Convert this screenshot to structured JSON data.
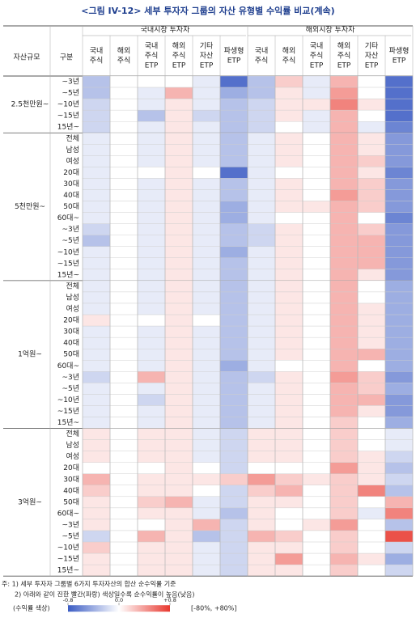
{
  "chart_data": {
    "type": "heatmap",
    "title": "<그림 IV-12> 세부 투자자 그룹의 자산 유형별 수익률 비교(계속)",
    "row_header": "자산규모",
    "sub_header": "구분",
    "column_groups": [
      {
        "name": "국내시장 투자자",
        "columns": [
          [
            "국내",
            "주식"
          ],
          [
            "해외",
            "주식"
          ],
          [
            "국내",
            "주식",
            "ETP"
          ],
          [
            "해외",
            "주식",
            "ETP"
          ],
          [
            "기타",
            "자산",
            "ETP"
          ],
          [
            "파생형",
            "ETP"
          ]
        ]
      },
      {
        "name": "해외시장 투자자",
        "columns": [
          [
            "국내",
            "주식"
          ],
          [
            "해외",
            "주식"
          ],
          [
            "국내",
            "주식",
            "ETP"
          ],
          [
            "해외",
            "주식",
            "ETP"
          ],
          [
            "기타",
            "자산",
            "ETP"
          ],
          [
            "파생형",
            "ETP"
          ]
        ]
      }
    ],
    "row_groups": [
      {
        "name": "2.5천만원~",
        "rows": [
          "~3년",
          "~5년",
          "~10년",
          "~15년",
          "15년~"
        ]
      },
      {
        "name": "5천만원~",
        "rows": [
          "전체",
          "남성",
          "여성",
          "20대",
          "30대",
          "40대",
          "50대",
          "60대~",
          "~3년",
          "~5년",
          "~10년",
          "~15년",
          "15년~"
        ]
      },
      {
        "name": "1억원~",
        "rows": [
          "전체",
          "남성",
          "여성",
          "20대",
          "30대",
          "40대",
          "50대",
          "60대~",
          "~3년",
          "~5년",
          "~10년",
          "~15년",
          "15년~"
        ]
      },
      {
        "name": "3억원~",
        "rows": [
          "전체",
          "남성",
          "여성",
          "20대",
          "30대",
          "40대",
          "50대",
          "60대~",
          "~3년",
          "~5년",
          "~10년",
          "~15년",
          "15년~"
        ]
      }
    ],
    "values": [
      [
        [
          -0.3,
          0,
          0,
          0,
          -0.1,
          -0.7,
          -0.3,
          0.2,
          -0.1,
          0.3,
          0,
          -0.7
        ],
        [
          -0.3,
          0,
          -0.1,
          0.3,
          -0.1,
          -0.4,
          -0.3,
          0.1,
          -0.1,
          0.4,
          0,
          -0.7
        ],
        [
          -0.2,
          0,
          -0.1,
          0.1,
          -0.1,
          -0.3,
          -0.2,
          0.1,
          0.1,
          0.5,
          0.1,
          -0.7
        ],
        [
          -0.2,
          0,
          -0.3,
          0.1,
          -0.2,
          -0.3,
          -0.2,
          0.1,
          -0.1,
          0.3,
          0,
          -0.7
        ],
        [
          -0.2,
          0,
          -0.1,
          0.1,
          -0.1,
          -0.3,
          -0.2,
          0,
          -0.1,
          0.3,
          -0.1,
          -0.6
        ]
      ],
      [
        [
          -0.1,
          0,
          -0.1,
          0.1,
          -0.1,
          -0.3,
          -0.1,
          0.1,
          0,
          0.3,
          0.1,
          -0.5
        ],
        [
          -0.1,
          0,
          -0.1,
          0.1,
          -0.1,
          -0.3,
          -0.1,
          0.1,
          0,
          0.3,
          0.1,
          -0.5
        ],
        [
          -0.1,
          0,
          -0.1,
          0.1,
          -0.1,
          -0.3,
          -0.1,
          0.1,
          0,
          0.3,
          0.2,
          -0.5
        ],
        [
          -0.1,
          0,
          0,
          0.1,
          0,
          -0.7,
          -0.1,
          0,
          0,
          0.3,
          0.1,
          -0.6
        ],
        [
          -0.1,
          0,
          -0.1,
          0.1,
          -0.1,
          -0.3,
          -0.1,
          0.1,
          0,
          0.3,
          0.2,
          -0.5
        ],
        [
          -0.1,
          0,
          -0.1,
          0.1,
          -0.1,
          -0.3,
          -0.1,
          0.1,
          0,
          0.4,
          0.2,
          -0.5
        ],
        [
          -0.1,
          0,
          -0.1,
          0.1,
          -0.1,
          -0.4,
          -0.1,
          0.1,
          0.1,
          0.3,
          0.2,
          -0.5
        ],
        [
          -0.1,
          0,
          -0.1,
          0.1,
          -0.1,
          -0.4,
          -0.1,
          0,
          0,
          0.3,
          0,
          -0.6
        ],
        [
          -0.2,
          0,
          -0.1,
          0.1,
          -0.1,
          -0.3,
          -0.2,
          0.1,
          0,
          0.3,
          0.2,
          -0.5
        ],
        [
          -0.3,
          0,
          -0.1,
          0.1,
          -0.1,
          -0.3,
          -0.2,
          0.1,
          0,
          0.3,
          0.3,
          -0.5
        ],
        [
          -0.1,
          0,
          -0.1,
          0.1,
          -0.1,
          -0.4,
          -0.1,
          0.1,
          0,
          0.3,
          0.3,
          -0.5
        ],
        [
          -0.1,
          0,
          -0.1,
          0.1,
          -0.1,
          -0.3,
          -0.1,
          0.1,
          0,
          0.3,
          0.3,
          -0.5
        ],
        [
          -0.1,
          0,
          -0.1,
          0.1,
          -0.1,
          -0.3,
          -0.1,
          0.1,
          0,
          0.3,
          0.1,
          -0.5
        ]
      ],
      [
        [
          -0.1,
          0,
          -0.1,
          0.1,
          -0.1,
          -0.3,
          -0.1,
          0.1,
          0,
          0.3,
          0,
          -0.4
        ],
        [
          -0.1,
          0,
          -0.1,
          0.1,
          -0.1,
          -0.3,
          -0.1,
          0.1,
          0,
          0.3,
          0,
          -0.4
        ],
        [
          -0.1,
          0,
          -0.1,
          0.1,
          -0.1,
          -0.3,
          -0.1,
          0.1,
          0,
          0.3,
          0.1,
          -0.4
        ],
        [
          0.1,
          0,
          0,
          0.1,
          0,
          -0.3,
          -0.1,
          0.1,
          0,
          0.3,
          0.1,
          -0.4
        ],
        [
          -0.1,
          0,
          -0.1,
          0.1,
          -0.1,
          -0.3,
          -0.1,
          0.1,
          0,
          0.3,
          0.1,
          -0.4
        ],
        [
          -0.1,
          0,
          -0.1,
          0.1,
          -0.1,
          -0.3,
          -0.1,
          0.1,
          0,
          0.3,
          0.1,
          -0.4
        ],
        [
          -0.1,
          0,
          -0.1,
          0.1,
          -0.1,
          -0.3,
          -0.1,
          0.1,
          0,
          0.3,
          0.3,
          -0.4
        ],
        [
          -0.1,
          0,
          -0.1,
          0.1,
          -0.1,
          -0.4,
          -0.1,
          0,
          0,
          0.3,
          0,
          -0.4
        ],
        [
          -0.2,
          0,
          0.3,
          0.1,
          -0.1,
          -0.3,
          -0.2,
          0.1,
          0,
          0.4,
          0.2,
          -0.5
        ],
        [
          -0.1,
          0,
          -0.1,
          0.1,
          -0.1,
          -0.3,
          -0.1,
          0.1,
          0,
          0.3,
          0.2,
          -0.4
        ],
        [
          -0.1,
          0,
          -0.2,
          0.1,
          -0.1,
          -0.3,
          -0.1,
          0.1,
          0,
          0.3,
          0.3,
          -0.5
        ],
        [
          -0.1,
          0,
          -0.1,
          0.1,
          -0.1,
          -0.3,
          -0.1,
          0.1,
          0,
          0.3,
          0.1,
          -0.5
        ],
        [
          -0.1,
          0,
          -0.1,
          0.1,
          -0.1,
          -0.3,
          -0.1,
          0.1,
          0,
          0.2,
          0,
          -0.4
        ]
      ],
      [
        [
          0.1,
          0,
          0.1,
          0.1,
          -0.1,
          -0.2,
          0.1,
          0.1,
          0,
          0.2,
          0,
          -0.1
        ],
        [
          0.1,
          0,
          0.1,
          0.1,
          -0.1,
          -0.2,
          0.1,
          0.1,
          0,
          0.2,
          0,
          -0.1
        ],
        [
          0.1,
          0,
          0.1,
          0.1,
          -0.1,
          -0.2,
          0.1,
          0.1,
          0,
          0.2,
          0.1,
          -0.2
        ],
        [
          0,
          0,
          0,
          0.1,
          0,
          -0.2,
          0,
          0,
          0,
          0.4,
          0.1,
          -0.3
        ],
        [
          0.3,
          0,
          0.1,
          0.1,
          0.1,
          0.2,
          0.4,
          0.2,
          0.1,
          0.2,
          0.1,
          -0.2
        ],
        [
          0.2,
          0,
          0.1,
          0.1,
          0,
          -0.2,
          0.2,
          0.3,
          0,
          0.2,
          0.5,
          -0.3
        ],
        [
          0.1,
          0,
          0.2,
          0.3,
          -0.1,
          -0.2,
          0.1,
          0.1,
          0,
          0.2,
          0,
          0.3
        ],
        [
          0.1,
          0,
          0.1,
          0.1,
          -0.1,
          -0.3,
          0.1,
          0,
          0,
          0.2,
          -0.1,
          0.5
        ],
        [
          0.1,
          0,
          0,
          0.1,
          0.3,
          -0.2,
          0.1,
          0,
          0.1,
          0.4,
          0,
          -0.3
        ],
        [
          -0.2,
          0,
          0.3,
          0.1,
          -0.3,
          -0.2,
          0.3,
          0.2,
          0,
          0.2,
          0,
          0.7
        ],
        [
          0.2,
          0,
          0.1,
          0.1,
          -0.1,
          -0.2,
          0.1,
          0.1,
          0,
          0.2,
          0,
          -0.2
        ],
        [
          0.1,
          0,
          0.1,
          0.1,
          -0.1,
          -0.2,
          0.1,
          0.4,
          0,
          0.3,
          0.1,
          -0.4
        ],
        [
          0.1,
          0,
          0.1,
          0.1,
          -0.1,
          -0.2,
          0.1,
          0.1,
          0,
          0.2,
          0,
          -0.2
        ]
      ]
    ],
    "low_color": "#3b5cc4",
    "mid_color": "#ffffff",
    "high_color": "#e8382f",
    "colorbar": {
      "label": "(수익률 색상)",
      "lim": [
        -0.8,
        0.8
      ],
      "ticks": [
        -0.8,
        {
          "value": 0,
          "label": "0.0"
        },
        {
          "value": 0.8,
          "label": "+0.8"
        }
      ],
      "range_label": "[-80%, +80%]"
    },
    "notes": [
      "주: 1) 세부 투자자 그룹별 6가지 투자자산의 합산 순수익률 기준",
      "2) 아래와 같이 진한 빨간(파랑) 색상일수록 순수익률이 높음(낮음)"
    ]
  }
}
